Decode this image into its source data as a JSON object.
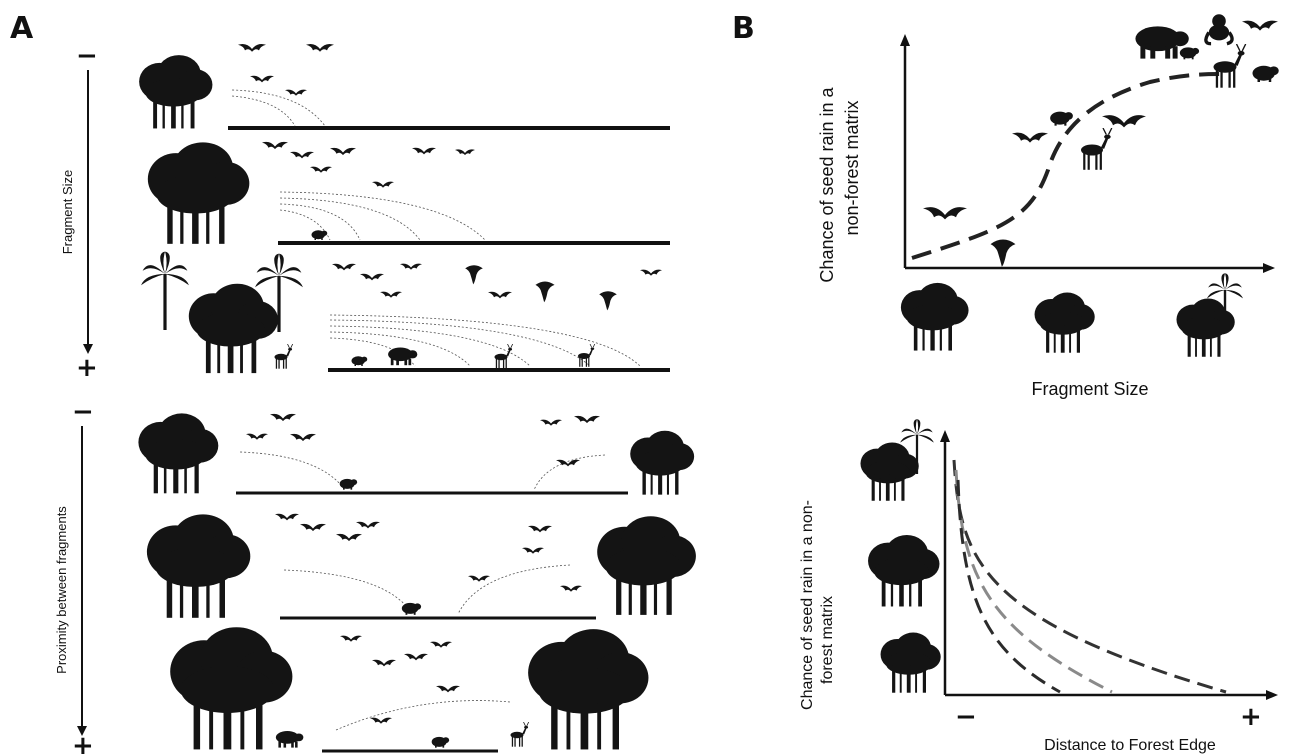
{
  "panels": {
    "a": {
      "letter": "A",
      "fragment_size_label": "Fragment Size",
      "proximity_label": "Proximity between fragments",
      "minus": "−",
      "plus": "+"
    },
    "b": {
      "letter": "B",
      "top_chart": {
        "ylabel_line1": "Chance of seed rain in a",
        "ylabel_line2": "non-forest matrix",
        "xlabel": "Fragment Size"
      },
      "bottom_chart": {
        "ylabel_line1": "Chance of seed rain in a non-",
        "ylabel_line2": "forest matrix",
        "xlabel": "Distance to Forest Edge",
        "minus": "−",
        "plus": "+"
      }
    }
  },
  "colors": {
    "ink": "#111111",
    "curve_dark": "#2b2b2b",
    "curve_mid": "#8a8a8a"
  },
  "icons": [
    "tree-silhouette-icon",
    "bat-icon",
    "bird-icon",
    "parrot-icon",
    "deer-icon",
    "tapir-icon",
    "rodent-icon",
    "primate-icon"
  ]
}
